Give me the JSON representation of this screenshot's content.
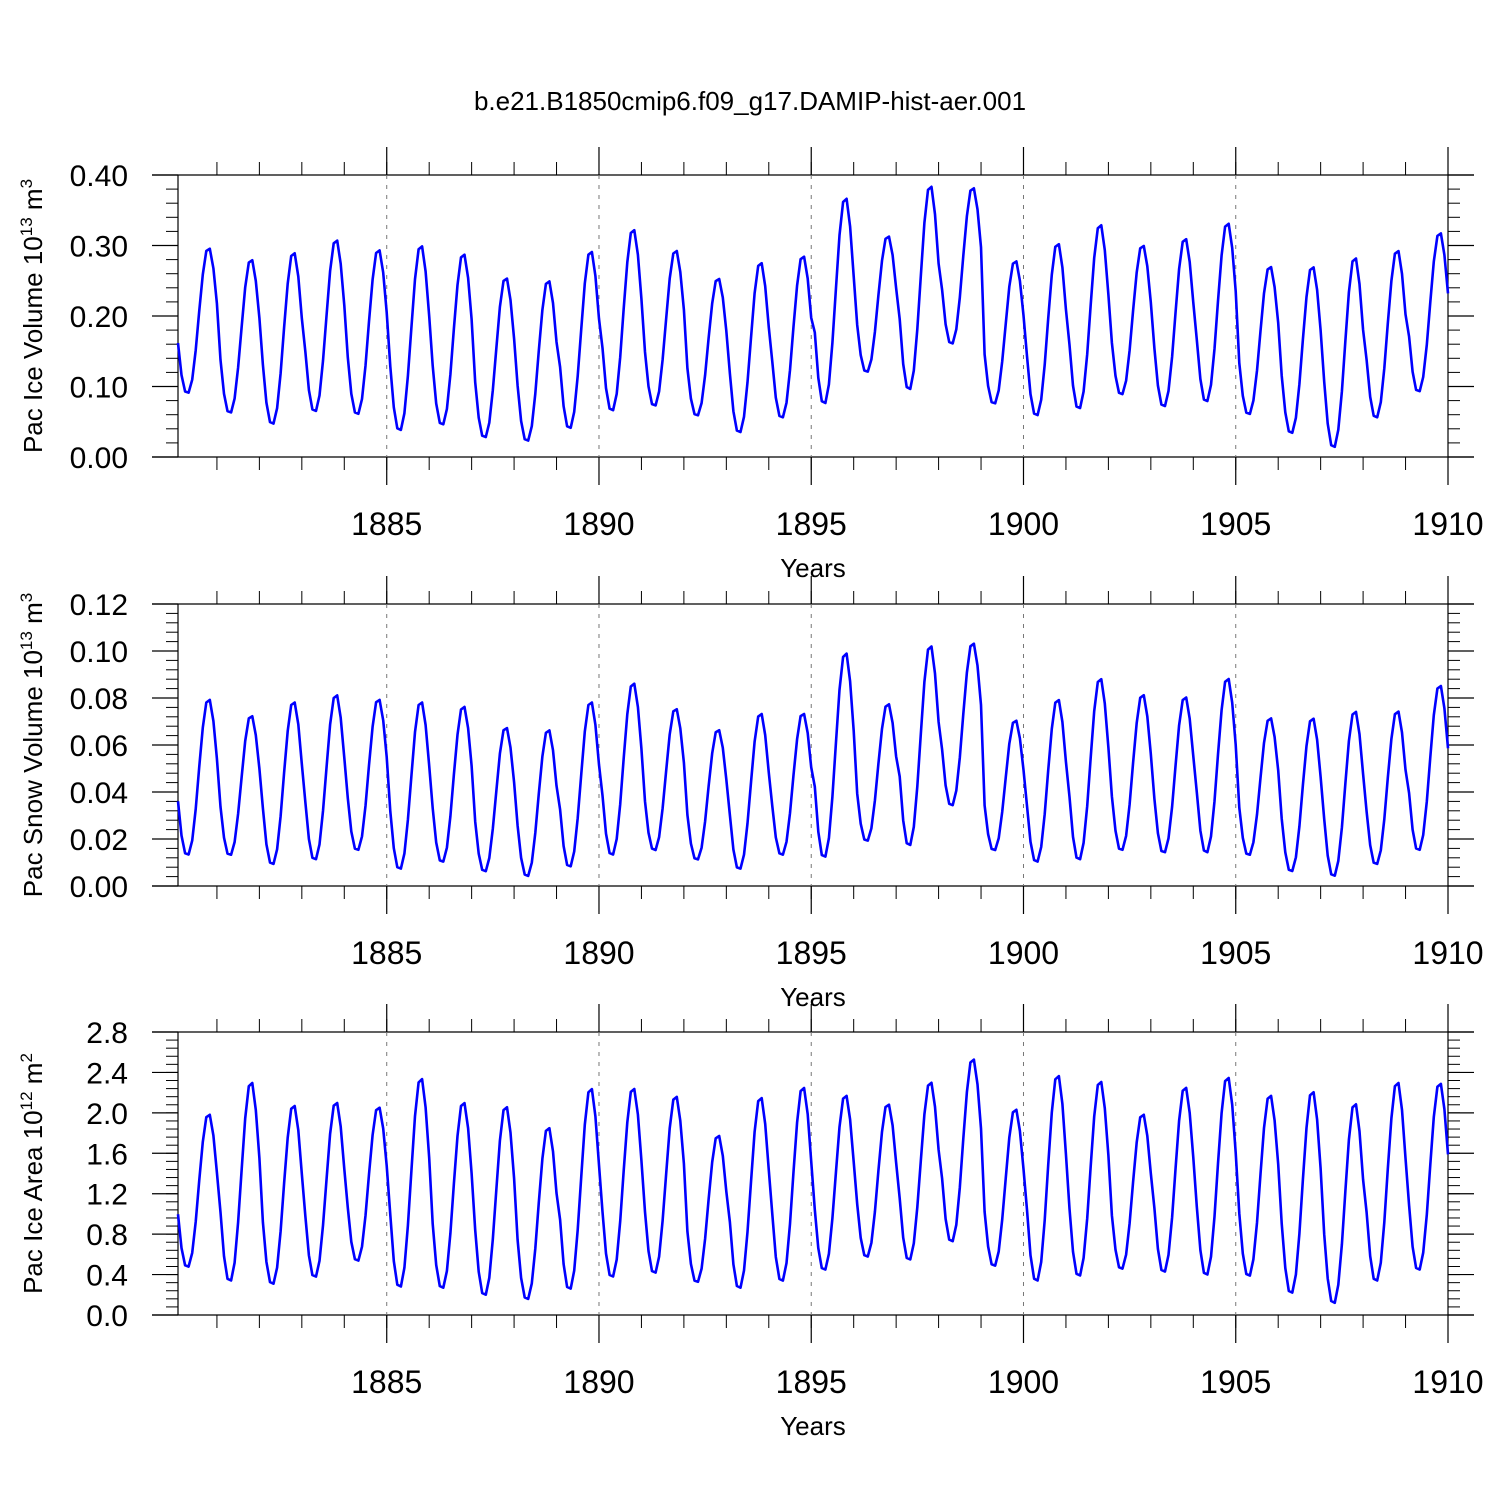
{
  "title": "b.e21.B1850cmip6.f09_g17.DAMIP-hist-aer.001",
  "line_color": "#0000ff",
  "chart_data": [
    {
      "type": "line",
      "title": "b.e21.B1850cmip6.f09_g17.DAMIP-hist-aer.001",
      "xlabel": "Years",
      "ylabel": {
        "base": "Pac Ice Volume 10",
        "sup1": "13",
        "mid": " m",
        "sup2": "3"
      },
      "ylim": [
        0,
        0.4
      ],
      "xlim": [
        1880.083,
        1910
      ],
      "x_tick_labels": [
        "1885",
        "1890",
        "1895",
        "1900",
        "1905",
        "1910"
      ],
      "x_ticks": [
        1885,
        1890,
        1895,
        1900,
        1905,
        1910
      ],
      "y_tick_labels": [
        "0.00",
        "0.10",
        "0.20",
        "0.30",
        "0.40"
      ],
      "y_ticks": [
        0,
        0.1,
        0.2,
        0.3,
        0.4
      ],
      "x_start": 1880.083,
      "x_step": 0.083333,
      "series": [
        {
          "name": "Pac Ice Volume",
          "values": []
        }
      ],
      "annual_cycle": {
        "min": [
          0.09,
          0.062,
          0.046,
          0.064,
          0.06,
          0.037,
          0.045,
          0.027,
          0.022,
          0.04,
          0.065,
          0.072,
          0.058,
          0.034,
          0.055,
          0.075,
          0.12,
          0.095,
          0.16,
          0.075,
          0.058,
          0.068,
          0.088,
          0.071,
          0.078,
          0.06,
          0.033,
          0.013,
          0.055,
          0.092
        ],
        "max": [
          0.298,
          0.282,
          0.292,
          0.31,
          0.296,
          0.302,
          0.29,
          0.256,
          0.252,
          0.294,
          0.325,
          0.295,
          0.255,
          0.278,
          0.287,
          0.37,
          0.315,
          0.387,
          0.384,
          0.28,
          0.305,
          0.332,
          0.302,
          0.312,
          0.334,
          0.272,
          0.272,
          0.285,
          0.295,
          0.32
        ]
      }
    },
    {
      "type": "line",
      "xlabel": "Years",
      "ylabel": {
        "base": "Pac Snow Volume 10",
        "sup1": "13",
        "mid": " m",
        "sup2": "3"
      },
      "ylim": [
        0,
        0.12
      ],
      "xlim": [
        1880.083,
        1910
      ],
      "x_tick_labels": [
        "1885",
        "1890",
        "1895",
        "1900",
        "1905",
        "1910"
      ],
      "x_ticks": [
        1885,
        1890,
        1895,
        1900,
        1905,
        1910
      ],
      "y_tick_labels": [
        "0.00",
        "0.02",
        "0.04",
        "0.06",
        "0.08",
        "0.10",
        "0.12"
      ],
      "y_ticks": [
        0,
        0.02,
        0.04,
        0.06,
        0.08,
        0.1,
        0.12
      ],
      "x_start": 1880.083,
      "x_step": 0.083333,
      "series": [
        {
          "name": "Pac Snow Volume",
          "values": []
        }
      ],
      "annual_cycle": {
        "min": [
          0.013,
          0.013,
          0.009,
          0.011,
          0.015,
          0.007,
          0.01,
          0.006,
          0.004,
          0.008,
          0.013,
          0.015,
          0.011,
          0.007,
          0.013,
          0.012,
          0.019,
          0.017,
          0.034,
          0.015,
          0.01,
          0.011,
          0.015,
          0.014,
          0.014,
          0.013,
          0.006,
          0.004,
          0.009,
          0.015
        ],
        "max": [
          0.08,
          0.073,
          0.079,
          0.082,
          0.08,
          0.079,
          0.077,
          0.068,
          0.067,
          0.079,
          0.087,
          0.076,
          0.067,
          0.074,
          0.074,
          0.1,
          0.078,
          0.103,
          0.104,
          0.071,
          0.08,
          0.089,
          0.082,
          0.081,
          0.089,
          0.072,
          0.072,
          0.075,
          0.075,
          0.086
        ]
      }
    },
    {
      "type": "line",
      "xlabel": "Years",
      "ylabel": {
        "base": "Pac Ice Area 10",
        "sup1": "12",
        "mid": " m",
        "sup2": "2"
      },
      "ylim": [
        0,
        2.8
      ],
      "xlim": [
        1880.083,
        1910
      ],
      "x_tick_labels": [
        "1885",
        "1890",
        "1895",
        "1900",
        "1905",
        "1910"
      ],
      "x_ticks": [
        1885,
        1890,
        1895,
        1900,
        1905,
        1910
      ],
      "y_tick_labels": [
        "0.0",
        "0.4",
        "0.8",
        "1.2",
        "1.6",
        "2.0",
        "2.4",
        "2.8"
      ],
      "y_ticks": [
        0,
        0.4,
        0.8,
        1.2,
        1.6,
        2.0,
        2.4,
        2.8
      ],
      "x_start": 1880.083,
      "x_step": 0.083333,
      "series": [
        {
          "name": "Pac Ice Area",
          "values": []
        }
      ],
      "annual_cycle": {
        "min": [
          0.47,
          0.33,
          0.3,
          0.37,
          0.53,
          0.27,
          0.26,
          0.19,
          0.15,
          0.25,
          0.37,
          0.41,
          0.32,
          0.26,
          0.33,
          0.44,
          0.57,
          0.54,
          0.72,
          0.48,
          0.33,
          0.38,
          0.45,
          0.42,
          0.39,
          0.38,
          0.21,
          0.11,
          0.33,
          0.44
        ],
        "max": [
          2.0,
          2.32,
          2.09,
          2.12,
          2.07,
          2.36,
          2.12,
          2.08,
          1.87,
          2.26,
          2.26,
          2.18,
          1.79,
          2.17,
          2.27,
          2.19,
          2.1,
          2.32,
          2.55,
          2.05,
          2.39,
          2.33,
          2.0,
          2.27,
          2.37,
          2.19,
          2.23,
          2.11,
          2.32,
          2.31
        ]
      }
    }
  ]
}
